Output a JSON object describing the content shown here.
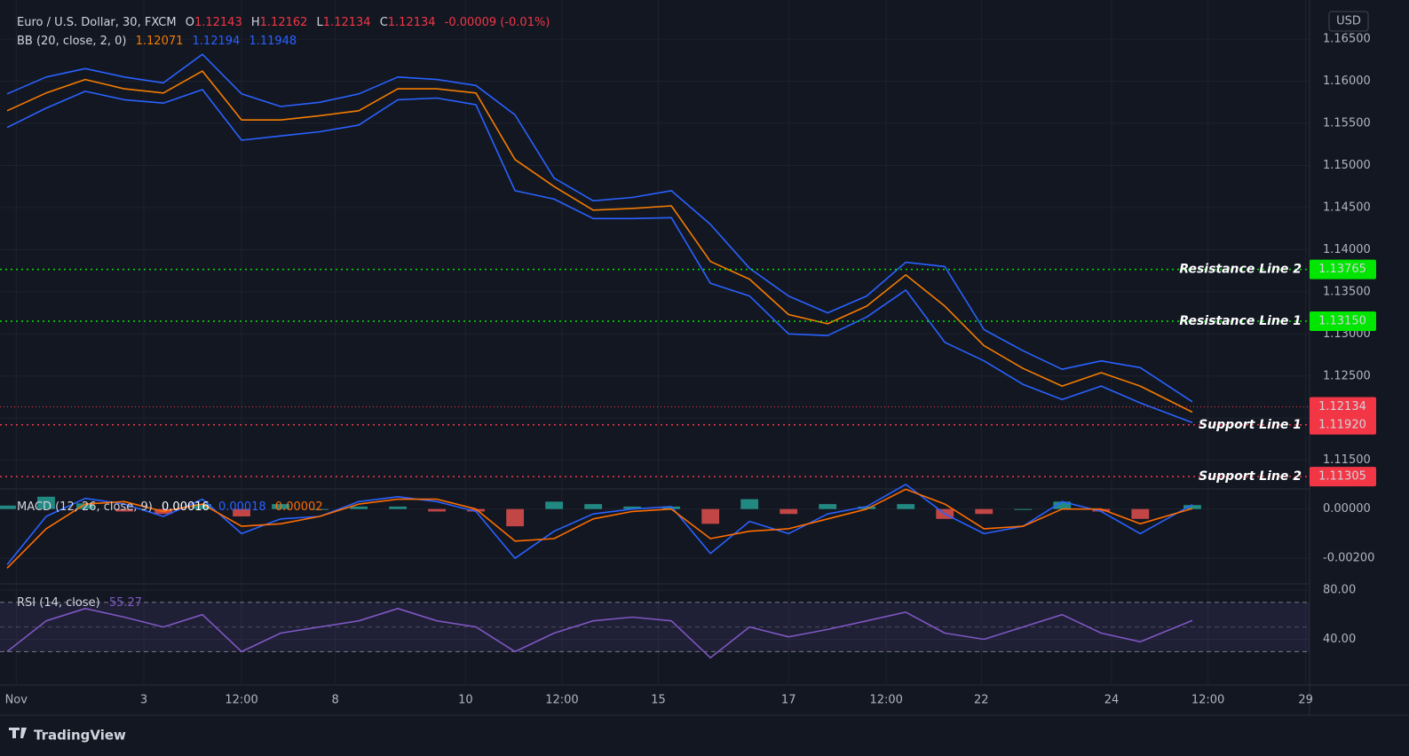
{
  "chart_data": [
    {
      "type": "line",
      "title": "Euro / U.S. Dollar, 30, FXCM",
      "ohlc": [
        {
          "label": "O",
          "value": "1.12143"
        },
        {
          "label": "H",
          "value": "1.12162"
        },
        {
          "label": "L",
          "value": "1.12134"
        },
        {
          "label": "C",
          "value": "1.12134"
        }
      ],
      "change": "-0.00009 (-0.01%)",
      "indicator": "BB (20, close, 2, 0)",
      "unit": "USD",
      "x": [
        0,
        3,
        6,
        9,
        12,
        15,
        18,
        21,
        24,
        27,
        30,
        33,
        36,
        39,
        42,
        45,
        48,
        51,
        54,
        57,
        60,
        63,
        66,
        69,
        72,
        75,
        78,
        81,
        84,
        87,
        91
      ],
      "series": [
        {
          "color": "#f57c00",
          "legend_value": "1.12071",
          "values": [
            1.1565,
            1.1586,
            1.1602,
            1.1591,
            1.1586,
            1.1612,
            1.1554,
            1.1554,
            1.1559,
            1.1565,
            1.1591,
            1.1591,
            1.1586,
            1.1507,
            1.1475,
            1.1447,
            1.1449,
            1.1452,
            1.1386,
            1.1365,
            1.1323,
            1.1312,
            1.1333,
            1.137,
            1.1333,
            1.1286,
            1.1259,
            1.1238,
            1.1254,
            1.1238,
            1.12071
          ]
        },
        {
          "color": "#2962ff",
          "legend_value": "1.12194",
          "values": [
            1.1585,
            1.1605,
            1.1615,
            1.1605,
            1.1598,
            1.1632,
            1.1585,
            1.157,
            1.1575,
            1.1585,
            1.1605,
            1.1602,
            1.1595,
            1.156,
            1.1485,
            1.1458,
            1.1462,
            1.147,
            1.143,
            1.1378,
            1.1345,
            1.1325,
            1.1345,
            1.1385,
            1.138,
            1.1305,
            1.128,
            1.1258,
            1.1268,
            1.126,
            1.12194
          ]
        },
        {
          "color": "#2962ff",
          "legend_value": "1.11948",
          "values": [
            1.1545,
            1.1568,
            1.1588,
            1.1578,
            1.1574,
            1.159,
            1.153,
            1.1535,
            1.154,
            1.1548,
            1.1578,
            1.158,
            1.1572,
            1.147,
            1.146,
            1.1437,
            1.1437,
            1.1438,
            1.136,
            1.1345,
            1.13,
            1.1298,
            1.132,
            1.1352,
            1.129,
            1.1268,
            1.124,
            1.1222,
            1.1238,
            1.1218,
            1.11948
          ]
        }
      ],
      "levels": [
        {
          "name": "Resistance Line 2",
          "value": 1.13765,
          "label": "1.13765",
          "color": "#00e600"
        },
        {
          "name": "Resistance Line 1",
          "value": 1.1315,
          "label": "1.13150",
          "color": "#00e600"
        },
        {
          "name": "Support Line 1",
          "value": 1.1192,
          "label": "1.11920",
          "color": "#f23645"
        },
        {
          "name": "Support Line 2",
          "value": 1.11305,
          "label": "1.11305",
          "color": "#f23645"
        }
      ],
      "last_price": {
        "value": 1.12134,
        "label": "1.12134",
        "color": "#f23645"
      },
      "xlim": [
        0,
        100
      ],
      "ylim": [
        1.1117,
        1.1688
      ],
      "yticks": [
        {
          "value": 1.165,
          "label": "1.16500"
        },
        {
          "value": 1.16,
          "label": "1.16000"
        },
        {
          "value": 1.155,
          "label": "1.15500"
        },
        {
          "value": 1.15,
          "label": "1.15000"
        },
        {
          "value": 1.145,
          "label": "1.14500"
        },
        {
          "value": 1.14,
          "label": "1.14000"
        },
        {
          "value": 1.135,
          "label": "1.13500"
        },
        {
          "value": 1.13,
          "label": "1.13000"
        },
        {
          "value": 1.125,
          "label": "1.12500"
        },
        {
          "value": 1.12,
          "label": "1.12000"
        },
        {
          "value": 1.115,
          "label": "1.11500"
        }
      ],
      "grid": true
    },
    {
      "type": "line",
      "indicator": "MACD (12, 26, close, 9)",
      "x": [
        0,
        3,
        6,
        9,
        12,
        15,
        18,
        21,
        24,
        27,
        30,
        33,
        36,
        39,
        42,
        45,
        48,
        51,
        54,
        57,
        60,
        63,
        66,
        69,
        72,
        75,
        78,
        81,
        84,
        87,
        91
      ],
      "histogram": {
        "color_up": "#26a69a",
        "color_down": "#ef5350",
        "legend_value": "0.00016",
        "values": [
          0.00014,
          0.0005,
          0.00023,
          -0.0001,
          -0.0002,
          0.0002,
          -0.0003,
          0.0002,
          0,
          0.0001,
          0.0001,
          -0.0001,
          -0.0001,
          -0.0007,
          0.0003,
          0.0002,
          0.0001,
          0.0001,
          -0.0006,
          0.0004,
          -0.0002,
          0.0002,
          0.0001,
          0.0002,
          -0.0004,
          -0.0002,
          0,
          0.0003,
          -0.0001,
          -0.0004,
          0.00016
        ]
      },
      "series": [
        {
          "color": "#2962ff",
          "legend_value": "0.00018",
          "values": [
            -0.00226,
            -0.0003,
            0.00043,
            0.0002,
            -0.0003,
            0.0004,
            -0.001,
            -0.0004,
            -0.0003,
            0.0003,
            0.0005,
            0.0003,
            -0.0001,
            -0.002,
            -0.0009,
            -0.0002,
            0,
            0.0001,
            -0.0018,
            -0.0005,
            -0.001,
            -0.0002,
            0.0001,
            0.001,
            -0.0002,
            -0.001,
            -0.0007,
            0.0003,
            -0.0001,
            -0.001,
            0.00018
          ]
        },
        {
          "color": "#ff6d00",
          "legend_value": "0.00002",
          "values": [
            -0.0024,
            -0.0008,
            0.0002,
            0.0003,
            -0.0001,
            0.0002,
            -0.0007,
            -0.0006,
            -0.0003,
            0.0002,
            0.0004,
            0.0004,
            0,
            -0.0013,
            -0.0012,
            -0.0004,
            -0.0001,
            0,
            -0.0012,
            -0.0009,
            -0.0008,
            -0.0004,
            0,
            0.0008,
            0.0002,
            -0.0008,
            -0.0007,
            0,
            0,
            -0.0006,
            2e-05
          ]
        }
      ],
      "xlim": [
        0,
        100
      ],
      "ylim": [
        -0.003,
        0.00078
      ],
      "yticks": [
        {
          "value": 0,
          "label": "0.00000"
        },
        {
          "value": -0.002,
          "label": "-0.00200"
        }
      ],
      "grid": true
    },
    {
      "type": "line",
      "indicator": "RSI (14, close)",
      "x": [
        0,
        3,
        6,
        9,
        12,
        15,
        18,
        21,
        24,
        27,
        30,
        33,
        36,
        39,
        42,
        45,
        48,
        51,
        54,
        57,
        60,
        63,
        66,
        69,
        72,
        75,
        78,
        81,
        84,
        87,
        91
      ],
      "series": [
        {
          "color": "#7e57c2",
          "legend_value": "55.27",
          "values": [
            30,
            55,
            65,
            58,
            50,
            60,
            30,
            45,
            50,
            55,
            65,
            55,
            50,
            30,
            45,
            55,
            58,
            55,
            25,
            50,
            42,
            48,
            55,
            62,
            45,
            40,
            50,
            60,
            45,
            38,
            55.27
          ]
        }
      ],
      "band": [
        30,
        70
      ],
      "midline": 50,
      "xlim": [
        0,
        100
      ],
      "ylim": [
        3.6,
        84.3
      ],
      "yticks": [
        {
          "value": 80,
          "label": "80.00"
        },
        {
          "value": 40,
          "label": "40.00"
        }
      ],
      "xticks": [
        {
          "value": 0.7,
          "label": "Nov"
        },
        {
          "value": 10.5,
          "label": "3"
        },
        {
          "value": 18,
          "label": "12:00"
        },
        {
          "value": 25.2,
          "label": "8"
        },
        {
          "value": 35.2,
          "label": "10"
        },
        {
          "value": 42.6,
          "label": "12:00"
        },
        {
          "value": 50,
          "label": "15"
        },
        {
          "value": 60,
          "label": "17"
        },
        {
          "value": 67.5,
          "label": "12:00"
        },
        {
          "value": 74.8,
          "label": "22"
        },
        {
          "value": 84.8,
          "label": "24"
        },
        {
          "value": 92.2,
          "label": "12:00"
        },
        {
          "value": 99.7,
          "label": "29"
        }
      ],
      "grid": true
    }
  ],
  "footer": {
    "brand": "TradingView"
  }
}
